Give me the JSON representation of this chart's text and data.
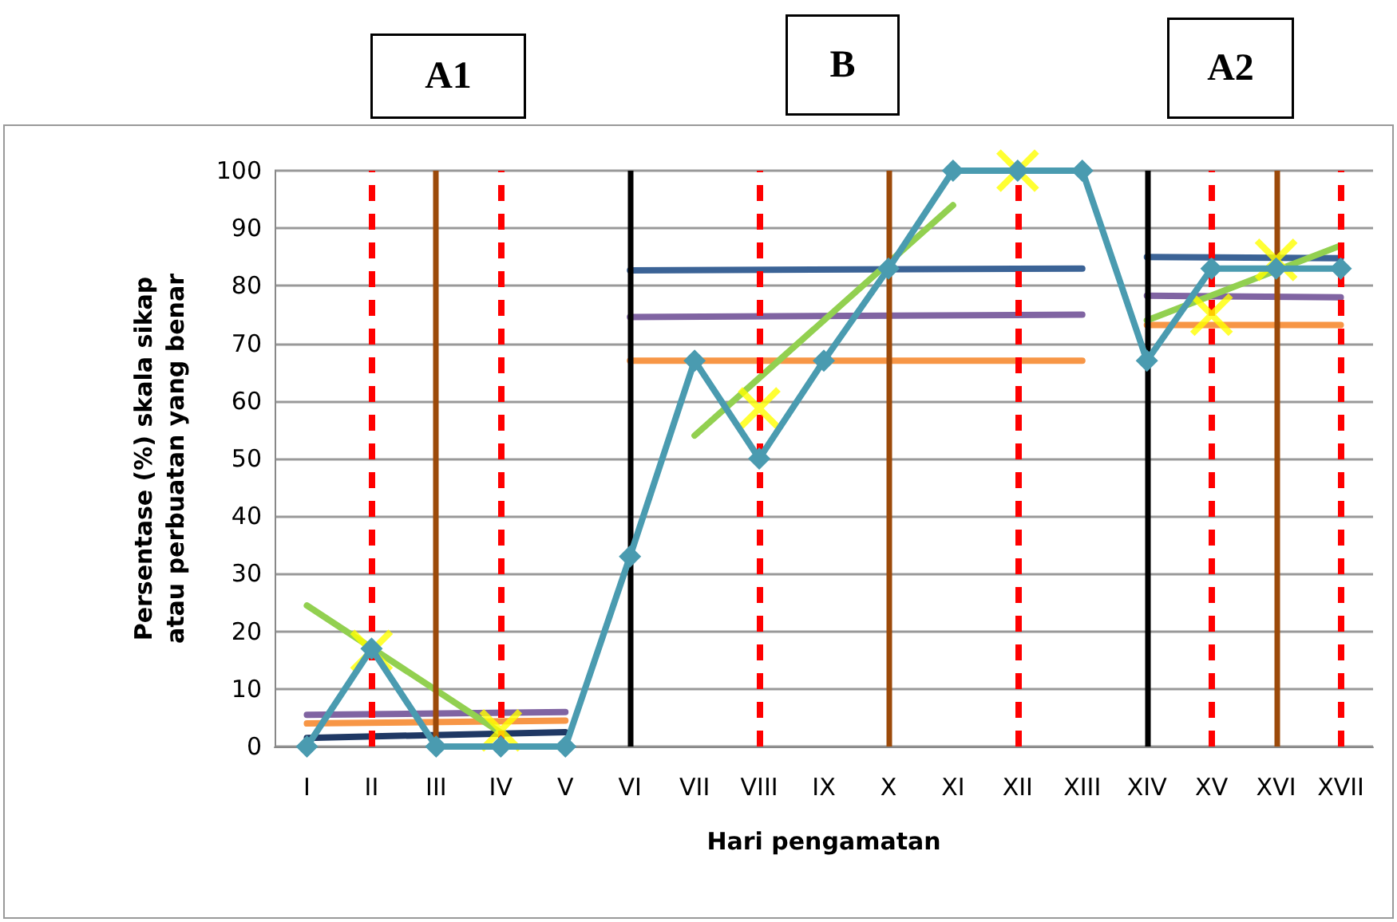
{
  "chart_data": {
    "type": "line",
    "xlabel": "Hari pengamatan",
    "ylabel": "Persentase (%) skala sikap atau perbuatan yang benar",
    "annotations": [
      "A1",
      "B",
      "A2"
    ],
    "categories": [
      "I",
      "II",
      "III",
      "IV",
      "V",
      "VI",
      "VII",
      "VIII",
      "IX",
      "X",
      "XI",
      "XII",
      "XIII",
      "XIV",
      "XV",
      "XVI",
      "XVII"
    ],
    "ylim": [
      0,
      100
    ],
    "yticks": [
      0,
      10,
      20,
      30,
      40,
      50,
      60,
      70,
      80,
      90,
      100
    ],
    "grid": "y",
    "series": [
      {
        "color": "#1f3864",
        "marker": "none",
        "x": [
          "I",
          "V"
        ],
        "values": [
          1.5,
          2.5
        ]
      },
      {
        "color": "#8064a2",
        "marker": "none",
        "x": [
          "I",
          "V"
        ],
        "values": [
          5.5,
          6
        ]
      },
      {
        "color": "#f79646",
        "marker": "none",
        "x": [
          "I",
          "V"
        ],
        "values": [
          4,
          4.5
        ]
      },
      {
        "color": "#3b6396",
        "marker": "none",
        "x": [
          "VI",
          "XIII"
        ],
        "values": [
          82.7,
          83
        ]
      },
      {
        "color": "#8064a2",
        "marker": "none",
        "x": [
          "VI",
          "XIII"
        ],
        "values": [
          74.6,
          75
        ]
      },
      {
        "color": "#f79646",
        "marker": "none",
        "x": [
          "VI",
          "XIII"
        ],
        "values": [
          67,
          67
        ]
      },
      {
        "color": "#3b6396",
        "marker": "none",
        "x": [
          "XIV",
          "XVII"
        ],
        "values": [
          85,
          84.8
        ]
      },
      {
        "color": "#8064a2",
        "marker": "none",
        "x": [
          "XIV",
          "XVII"
        ],
        "values": [
          78.3,
          78
        ]
      },
      {
        "color": "#f79646",
        "marker": "none",
        "x": [
          "XIV",
          "XVII"
        ],
        "values": [
          73.2,
          73.2
        ]
      },
      {
        "color": "#4a9bb0",
        "marker": "diamond",
        "values": [
          0,
          17,
          0,
          0,
          0,
          33,
          67,
          50,
          67,
          83,
          100,
          100,
          100,
          67,
          83,
          83,
          83
        ]
      },
      {
        "color": "#92d050",
        "marker": "none",
        "x": [
          "I",
          "IV"
        ],
        "values": [
          24.5,
          2.4
        ]
      },
      {
        "color": "#92d050",
        "marker": "none",
        "x": [
          "VII",
          "XI"
        ],
        "values": [
          54,
          94
        ]
      },
      {
        "color": "#92d050",
        "marker": "none",
        "x": [
          "XIV",
          "XVII"
        ],
        "values": [
          74,
          87
        ]
      },
      {
        "type": "scatter",
        "color": "#ffff00",
        "marker": "cross",
        "x": [
          "II",
          "IV",
          "VIII",
          "XII",
          "XV",
          "XVI"
        ],
        "values": [
          16.6,
          2.8,
          58.7,
          100,
          75,
          84.5
        ]
      }
    ],
    "ref_lines": [
      {
        "axis": "x",
        "value": "VI",
        "color": "#000000",
        "line_style": "solid"
      },
      {
        "axis": "x",
        "value": "XIV",
        "color": "#000000",
        "line_style": "solid"
      },
      {
        "axis": "x",
        "value": "II",
        "color": "#ff0000",
        "line_style": "dashed"
      },
      {
        "axis": "x",
        "value": "IV",
        "color": "#ff0000",
        "line_style": "dashed"
      },
      {
        "axis": "x",
        "value": "VIII",
        "color": "#ff0000",
        "line_style": "dashed"
      },
      {
        "axis": "x",
        "value": "XII",
        "color": "#ff0000",
        "line_style": "dashed"
      },
      {
        "axis": "x",
        "value": "XV",
        "color": "#ff0000",
        "line_style": "dashed"
      },
      {
        "axis": "x",
        "value": "XVII",
        "color": "#ff0000",
        "line_style": "dashed"
      },
      {
        "axis": "x",
        "value": "III",
        "color": "#9c4a0a",
        "line_style": "solid"
      },
      {
        "axis": "x",
        "value": "X",
        "color": "#9c4a0a",
        "line_style": "solid"
      },
      {
        "axis": "x",
        "value": "XVI",
        "color": "#9c4a0a",
        "line_style": "solid"
      }
    ]
  }
}
